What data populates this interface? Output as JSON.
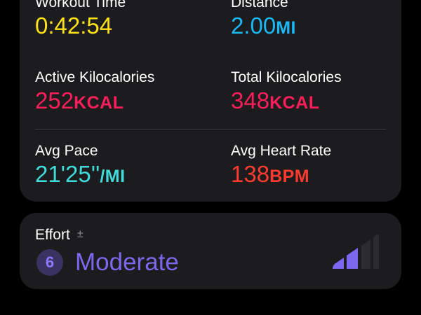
{
  "metrics": [
    {
      "label": "Workout Time",
      "value": "0:42:54",
      "unit": "",
      "color": "#ffe11a"
    },
    {
      "label": "Distance",
      "value": "2.00",
      "unit": "MI",
      "color": "#1ab8f5"
    },
    {
      "label": "Active Kilocalories",
      "value": "252",
      "unit": "KCAL",
      "color": "#fa1e5a"
    },
    {
      "label": "Total Kilocalories",
      "value": "348",
      "unit": "KCAL",
      "color": "#fa1e5a"
    },
    {
      "label": "Avg Pace",
      "value": "21'25''",
      "unit": "/MI",
      "color": "#40dcdc"
    },
    {
      "label": "Avg Heart Rate",
      "value": "138",
      "unit": "BPM",
      "color": "#ff3b30"
    }
  ],
  "effort": {
    "label": "Effort",
    "adjust_icon": "plus-minus",
    "score": "6",
    "level": "Moderate",
    "color": "#7b68ee",
    "bars_filled": 2,
    "bars_total": 4
  }
}
